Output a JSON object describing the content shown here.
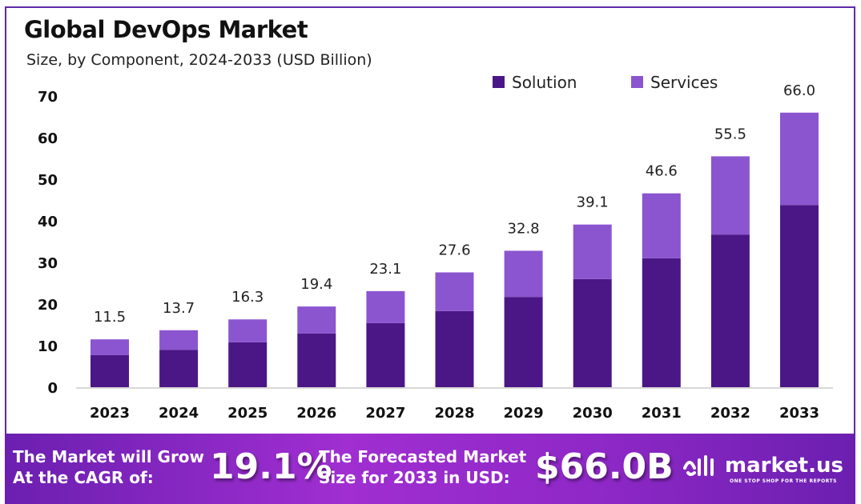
{
  "chart_data": {
    "type": "bar",
    "stacked": true,
    "title": "Global DevOps Market",
    "subtitle": "Size, by Component, 2024-2033 (USD Billion)",
    "categories": [
      "2023",
      "2024",
      "2025",
      "2026",
      "2027",
      "2028",
      "2029",
      "2030",
      "2031",
      "2032",
      "2033"
    ],
    "series": [
      {
        "name": "Solution",
        "color": "#4b1786",
        "values": [
          7.7,
          9.0,
          10.8,
          12.9,
          15.4,
          18.3,
          21.7,
          26.0,
          31.0,
          36.7,
          43.8
        ]
      },
      {
        "name": "Services",
        "color": "#8b55d0",
        "values": [
          3.8,
          4.7,
          5.5,
          6.5,
          7.7,
          9.3,
          11.1,
          13.1,
          15.6,
          18.8,
          22.2
        ]
      }
    ],
    "totals": [
      "11.5",
      "13.7",
      "16.3",
      "19.4",
      "23.1",
      "27.6",
      "32.8",
      "39.1",
      "46.6",
      "55.5",
      "66.0"
    ],
    "ylim": [
      0,
      70
    ],
    "yticks": [
      "0",
      "10",
      "20",
      "30",
      "40",
      "50",
      "60",
      "70"
    ],
    "grid": false,
    "legend": "top-right"
  },
  "footer": {
    "cagr_label_1": "The Market will Grow",
    "cagr_label_2": "At the CAGR of:",
    "cagr_value": "19.1%",
    "forecast_label_1": "The Forecasted Market",
    "forecast_label_2": "Size for 2033 in USD:",
    "forecast_value": "$66.0B",
    "logo_text": "market.us",
    "logo_tagline": "ONE STOP SHOP FOR THE REPORTS"
  }
}
